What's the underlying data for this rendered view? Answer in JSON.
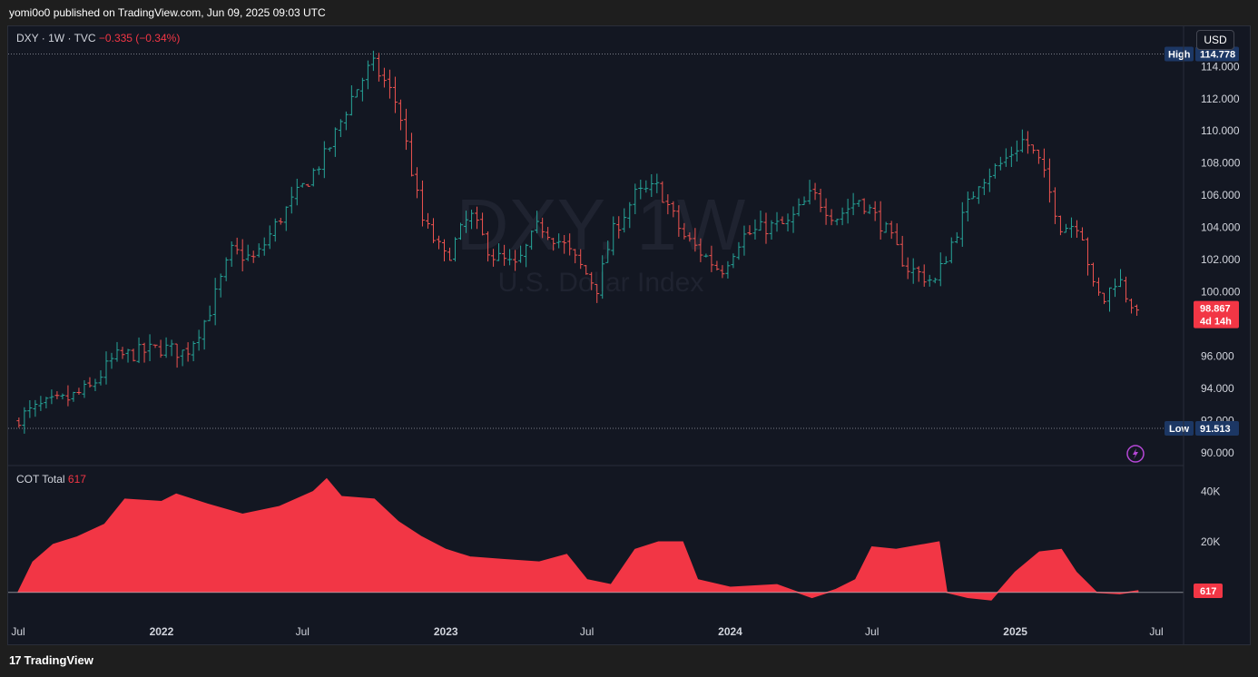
{
  "header": {
    "published": "yomi0o0 published on TradingView.com, Jun 09, 2025 09:03 UTC"
  },
  "legend": {
    "symbol": "DXY · 1W · TVC",
    "change": "−0.335 (−0.34%)"
  },
  "currency_button": "USD",
  "watermark": {
    "ticker": "DXY, 1W",
    "name": "U.S. Dollar Index"
  },
  "markers": {
    "high_label": "High",
    "high_value": "114.778",
    "low_label": "Low",
    "low_value": "91.513",
    "last_price": "98.867",
    "countdown": "4d 14h",
    "cot_last": "617"
  },
  "indicator": {
    "name": "COT Total",
    "value": "617"
  },
  "footer": {
    "brand": "TradingView"
  },
  "colors": {
    "up": "#26a69a",
    "down": "#ef5350",
    "area": "#f23645",
    "background": "#131722",
    "label_blue": "#1c3764"
  },
  "chart_data": [
    {
      "type": "ohlc",
      "title": "DXY · 1W · TVC",
      "ylim": [
        89.2,
        116.5
      ],
      "y_ticks": [
        "90.000",
        "92.000",
        "94.000",
        "96.000",
        "98.000",
        "100.000",
        "102.000",
        "104.000",
        "106.000",
        "108.000",
        "110.000",
        "112.000",
        "114.000"
      ],
      "x_ticks": [
        "Jul",
        "2022",
        "Jul",
        "2023",
        "Jul",
        "2024",
        "Jul",
        "2025",
        "Jul"
      ],
      "x_tick_dates": [
        "2021-07-01",
        "2022-01-01",
        "2022-07-01",
        "2023-01-01",
        "2023-07-01",
        "2024-01-01",
        "2024-07-01",
        "2025-01-01",
        "2025-07-01"
      ],
      "high": 114.778,
      "low": 91.513,
      "last": 98.867,
      "closes": [
        {
          "date": "2021-07-02",
          "close": 92.2
        },
        {
          "date": "2021-08-01",
          "close": 92.9
        },
        {
          "date": "2021-09-01",
          "close": 93.3
        },
        {
          "date": "2021-10-01",
          "close": 94.0
        },
        {
          "date": "2021-11-01",
          "close": 95.9
        },
        {
          "date": "2021-12-01",
          "close": 96.2
        },
        {
          "date": "2022-01-01",
          "close": 96.5
        },
        {
          "date": "2022-02-01",
          "close": 96.2
        },
        {
          "date": "2022-03-01",
          "close": 98.5
        },
        {
          "date": "2022-04-01",
          "close": 102.5
        },
        {
          "date": "2022-05-01",
          "close": 102.0
        },
        {
          "date": "2022-06-01",
          "close": 104.5
        },
        {
          "date": "2022-07-01",
          "close": 106.5
        },
        {
          "date": "2022-08-01",
          "close": 108.6
        },
        {
          "date": "2022-09-01",
          "close": 112.0
        },
        {
          "date": "2022-09-28",
          "close": 114.2
        },
        {
          "date": "2022-10-15",
          "close": 113.0
        },
        {
          "date": "2022-11-01",
          "close": 111.5
        },
        {
          "date": "2022-12-01",
          "close": 104.5
        },
        {
          "date": "2023-01-01",
          "close": 102.0
        },
        {
          "date": "2023-02-01",
          "close": 104.8
        },
        {
          "date": "2023-03-01",
          "close": 102.3
        },
        {
          "date": "2023-04-01",
          "close": 101.5
        },
        {
          "date": "2023-05-01",
          "close": 104.2
        },
        {
          "date": "2023-06-01",
          "close": 102.9
        },
        {
          "date": "2023-07-15",
          "close": 100.2
        },
        {
          "date": "2023-08-01",
          "close": 103.5
        },
        {
          "date": "2023-09-01",
          "close": 106.0
        },
        {
          "date": "2023-10-01",
          "close": 106.5
        },
        {
          "date": "2023-11-01",
          "close": 103.5
        },
        {
          "date": "2023-12-20",
          "close": 101.3
        },
        {
          "date": "2024-01-15",
          "close": 103.4
        },
        {
          "date": "2024-02-15",
          "close": 104.0
        },
        {
          "date": "2024-03-15",
          "close": 104.2
        },
        {
          "date": "2024-04-15",
          "close": 106.1
        },
        {
          "date": "2024-05-15",
          "close": 104.6
        },
        {
          "date": "2024-06-15",
          "close": 105.8
        },
        {
          "date": "2024-07-15",
          "close": 104.1
        },
        {
          "date": "2024-08-15",
          "close": 101.5
        },
        {
          "date": "2024-09-20",
          "close": 100.6
        },
        {
          "date": "2024-10-15",
          "close": 103.5
        },
        {
          "date": "2024-11-15",
          "close": 106.9
        },
        {
          "date": "2024-12-15",
          "close": 108.0
        },
        {
          "date": "2025-01-12",
          "close": 109.5
        },
        {
          "date": "2025-02-01",
          "close": 108.0
        },
        {
          "date": "2025-03-01",
          "close": 104.0
        },
        {
          "date": "2025-03-25",
          "close": 104.3
        },
        {
          "date": "2025-04-12",
          "close": 100.0
        },
        {
          "date": "2025-04-25",
          "close": 99.5
        },
        {
          "date": "2025-05-12",
          "close": 101.0
        },
        {
          "date": "2025-05-26",
          "close": 99.5
        },
        {
          "date": "2025-06-08",
          "close": 98.867
        }
      ]
    },
    {
      "type": "area",
      "title": "COT Total",
      "ylim": [
        -12000,
        50000
      ],
      "y_ticks": [
        "20K",
        "40K"
      ],
      "last": 617,
      "points": [
        {
          "date": "2021-07-01",
          "value": 0
        },
        {
          "date": "2021-07-20",
          "value": 12000
        },
        {
          "date": "2021-08-15",
          "value": 19000
        },
        {
          "date": "2021-09-15",
          "value": 22000
        },
        {
          "date": "2021-10-20",
          "value": 27000
        },
        {
          "date": "2021-11-15",
          "value": 37000
        },
        {
          "date": "2022-01-01",
          "value": 36000
        },
        {
          "date": "2022-01-20",
          "value": 39000
        },
        {
          "date": "2022-03-01",
          "value": 35000
        },
        {
          "date": "2022-04-15",
          "value": 31000
        },
        {
          "date": "2022-06-01",
          "value": 34000
        },
        {
          "date": "2022-07-15",
          "value": 40000
        },
        {
          "date": "2022-08-01",
          "value": 45000
        },
        {
          "date": "2022-08-20",
          "value": 38000
        },
        {
          "date": "2022-10-01",
          "value": 37000
        },
        {
          "date": "2022-11-01",
          "value": 28000
        },
        {
          "date": "2022-12-01",
          "value": 22000
        },
        {
          "date": "2023-01-01",
          "value": 17000
        },
        {
          "date": "2023-02-01",
          "value": 14000
        },
        {
          "date": "2023-03-15",
          "value": 13000
        },
        {
          "date": "2023-05-01",
          "value": 12000
        },
        {
          "date": "2023-06-05",
          "value": 15000
        },
        {
          "date": "2023-07-01",
          "value": 5000
        },
        {
          "date": "2023-08-01",
          "value": 3000
        },
        {
          "date": "2023-09-01",
          "value": 17000
        },
        {
          "date": "2023-10-01",
          "value": 20000
        },
        {
          "date": "2023-11-01",
          "value": 20000
        },
        {
          "date": "2023-11-20",
          "value": 5000
        },
        {
          "date": "2024-01-01",
          "value": 2000
        },
        {
          "date": "2024-03-01",
          "value": 3000
        },
        {
          "date": "2024-04-15",
          "value": -2000
        },
        {
          "date": "2024-05-15",
          "value": 1000
        },
        {
          "date": "2024-06-10",
          "value": 5000
        },
        {
          "date": "2024-07-01",
          "value": 18000
        },
        {
          "date": "2024-08-01",
          "value": 17000
        },
        {
          "date": "2024-09-25",
          "value": 20000
        },
        {
          "date": "2024-10-05",
          "value": 0
        },
        {
          "date": "2024-11-01",
          "value": -2000
        },
        {
          "date": "2024-12-01",
          "value": -3000
        },
        {
          "date": "2025-01-01",
          "value": 8000
        },
        {
          "date": "2025-02-01",
          "value": 16000
        },
        {
          "date": "2025-03-01",
          "value": 17000
        },
        {
          "date": "2025-03-20",
          "value": 8000
        },
        {
          "date": "2025-04-15",
          "value": 0
        },
        {
          "date": "2025-05-15",
          "value": -500
        },
        {
          "date": "2025-06-08",
          "value": 617
        }
      ]
    }
  ]
}
